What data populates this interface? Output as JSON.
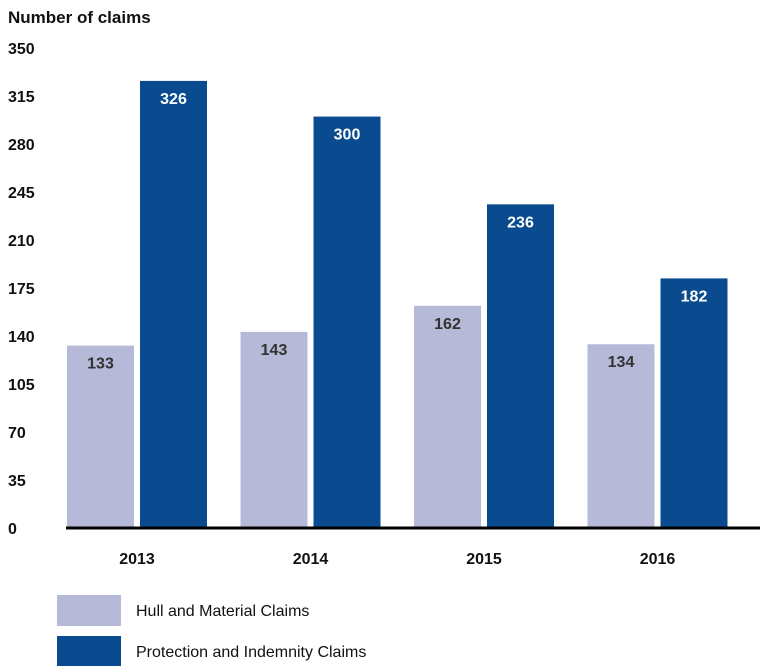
{
  "chart_data": {
    "type": "bar",
    "title": "",
    "ylabel": "Number of claims",
    "xlabel": "",
    "ylim": [
      0,
      350
    ],
    "yticks": [
      0,
      35,
      70,
      105,
      140,
      175,
      210,
      245,
      280,
      315,
      350
    ],
    "categories": [
      "2013",
      "2014",
      "2015",
      "2016"
    ],
    "series": [
      {
        "name": "Hull and Material Claims",
        "color": "#b7b9d9",
        "label_color": "#333333",
        "values": [
          133,
          143,
          162,
          134
        ]
      },
      {
        "name": "Protection and Indemnity Claims",
        "color": "#0a4b8f",
        "label_color": "#ffffff",
        "values": [
          326,
          300,
          236,
          182
        ]
      }
    ],
    "grid": false,
    "legend_position": "bottom-left"
  }
}
